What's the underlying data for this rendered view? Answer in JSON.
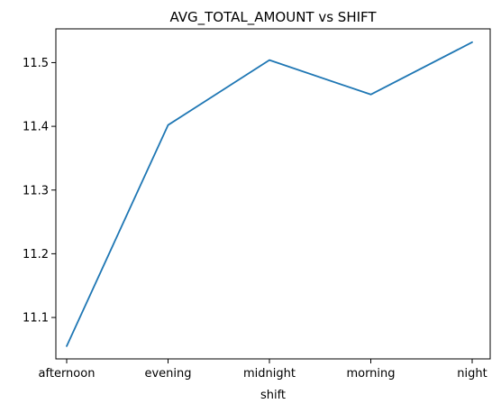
{
  "chart_data": {
    "type": "line",
    "title": "AVG_TOTAL_AMOUNT vs SHIFT",
    "xlabel": "shift",
    "ylabel": "",
    "categories": [
      "afternoon",
      "evening",
      "midnight",
      "morning",
      "night"
    ],
    "series": [
      {
        "values": [
          11.055,
          11.402,
          11.504,
          11.45,
          11.532
        ],
        "color": "#1f77b4"
      }
    ],
    "ylim": [
      11.035,
      11.553
    ],
    "yticks": [
      11.1,
      11.2,
      11.3,
      11.4,
      11.5
    ],
    "ytick_labels": [
      "11.1",
      "11.2",
      "11.3",
      "11.4",
      "11.5"
    ],
    "grid": false,
    "legend": "none"
  }
}
